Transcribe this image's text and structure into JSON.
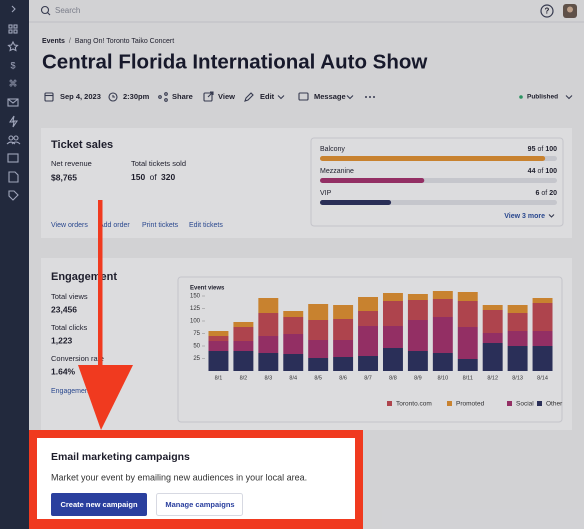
{
  "topbar": {
    "search_placeholder": "Search"
  },
  "breadcrumb": {
    "items": [
      "Events",
      "Bang On! Toronto Taiko Concert"
    ],
    "separator": "/"
  },
  "title": "Central Florida International Auto Show",
  "actions": {
    "date": "Sep 4, 2023",
    "time": "2:30pm",
    "share": "Share",
    "view": "View",
    "edit": "Edit",
    "message": "Message",
    "status": "Published"
  },
  "ticket_sales": {
    "title": "Ticket sales",
    "net_revenue_label": "Net revenue",
    "net_revenue": "$8,765",
    "tickets_label": "Total tickets sold",
    "tickets_sold": 150,
    "tickets_total": 320,
    "separator": "of",
    "links": [
      "View orders",
      "Add order",
      "Print tickets",
      "Edit tickets"
    ],
    "tiers": [
      {
        "name": "Balcony",
        "sold": 95,
        "capacity": 100,
        "color": "#e8942f"
      },
      {
        "name": "Mezzanine",
        "sold": 44,
        "capacity": 100,
        "color": "#a8326e"
      },
      {
        "name": "VIP",
        "sold": 6,
        "capacity": 20,
        "color": "#2b3160"
      }
    ],
    "view_more": "View 3 more"
  },
  "engagement": {
    "title": "Engagement",
    "stats": [
      {
        "label": "Total views",
        "value": "23,456"
      },
      {
        "label": "Total clicks",
        "value": "1,223"
      },
      {
        "label": "Conversion rate",
        "value": "1.64%"
      }
    ],
    "report_link": "Engagement report"
  },
  "chart_data": {
    "type": "bar",
    "stacked": true,
    "title": "Event views",
    "categories": [
      "8/1",
      "8/2",
      "8/3",
      "8/4",
      "8/5",
      "8/6",
      "8/7",
      "8/8",
      "8/9",
      "8/10",
      "8/11",
      "8/12",
      "8/13",
      "8/14"
    ],
    "series": [
      {
        "name": "Toronto.com",
        "color": "#c94a53",
        "values": [
          10,
          28,
          46,
          34,
          40,
          42,
          30,
          50,
          40,
          36,
          52,
          46,
          36,
          56
        ]
      },
      {
        "name": "Promoted",
        "color": "#e8942f",
        "values": [
          10,
          10,
          30,
          12,
          32,
          28,
          28,
          16,
          12,
          16,
          18,
          10,
          16,
          10
        ]
      },
      {
        "name": "Social",
        "color": "#a8326e",
        "values": [
          20,
          20,
          34,
          40,
          36,
          34,
          60,
          44,
          62,
          72,
          64,
          20,
          30,
          30
        ]
      },
      {
        "name": "Other",
        "color": "#2b3160",
        "values": [
          40,
          40,
          36,
          34,
          26,
          28,
          30,
          46,
          40,
          36,
          24,
          56,
          50,
          50
        ]
      }
    ],
    "stack_order": [
      "Other",
      "Social",
      "Toronto.com",
      "Promoted"
    ],
    "ylim": [
      0,
      170
    ],
    "yticks": [
      25,
      50,
      75,
      100,
      125,
      150
    ],
    "legend": "bottom-right"
  },
  "promo": {
    "title": "Email marketing campaigns",
    "text": "Market your event by emailing new audiences in your local area.",
    "buttons": [
      "Create new campaign",
      "Manage campaigns"
    ]
  }
}
